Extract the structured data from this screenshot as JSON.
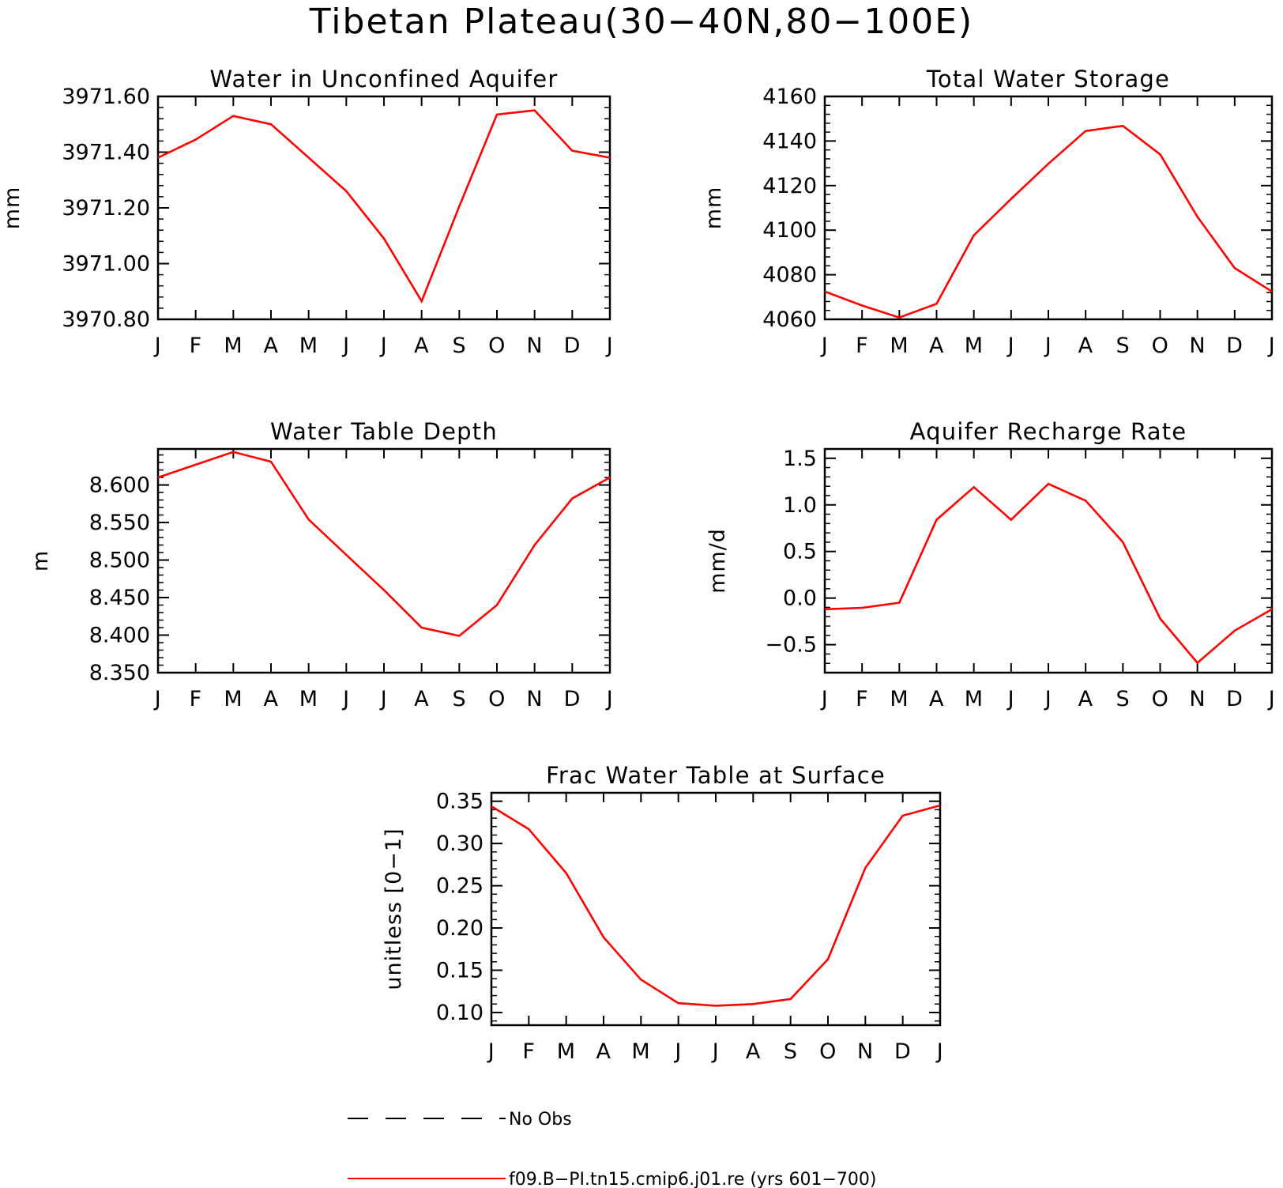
{
  "title": "Tibetan Plateau(30−40N,80−100E)",
  "legend": {
    "placement": "bottom",
    "entries": [
      {
        "label": "No Obs",
        "style": "dashed",
        "color": "#000000"
      },
      {
        "label": "f09.B−PI.tn15.cmip6.j01.re (yrs 601−700)",
        "style": "solid",
        "color": "#ff0000"
      }
    ]
  },
  "chart_data": [
    {
      "type": "line",
      "title": "Water in Unconfined Aquifer",
      "xlabel": "",
      "ylabel": "mm",
      "categories": [
        "J",
        "F",
        "M",
        "A",
        "M",
        "J",
        "J",
        "A",
        "S",
        "O",
        "N",
        "D",
        "J"
      ],
      "series": [
        {
          "name": "f09.B−PI.tn15.cmip6.j01.re (yrs 601−700)",
          "color": "#ff0000",
          "values": [
            3971.38,
            3971.445,
            3971.53,
            3971.5,
            3971.38,
            3971.26,
            3971.09,
            3970.865,
            3971.205,
            3971.535,
            3971.55,
            3971.405,
            3971.38
          ]
        }
      ],
      "ylim": [
        3970.8,
        3971.6
      ],
      "yticks": [
        3970.8,
        3971.0,
        3971.2,
        3971.4,
        3971.6
      ],
      "ytick_labels": [
        "3970.80",
        "3971.00",
        "3971.20",
        "3971.40",
        "3971.60"
      ]
    },
    {
      "type": "line",
      "title": "Total Water Storage",
      "xlabel": "",
      "ylabel": "mm",
      "categories": [
        "J",
        "F",
        "M",
        "A",
        "M",
        "J",
        "J",
        "A",
        "S",
        "O",
        "N",
        "D",
        "J"
      ],
      "series": [
        {
          "name": "f09.B−PI.tn15.cmip6.j01.re (yrs 601−700)",
          "color": "#ff0000",
          "values": [
            4072.5,
            4066.2,
            4060.8,
            4067.0,
            4097.7,
            4114.0,
            4129.8,
            4144.5,
            4146.8,
            4134.0,
            4106.0,
            4083.0,
            4072.5
          ]
        }
      ],
      "ylim": [
        4060,
        4160
      ],
      "yticks": [
        4060,
        4080,
        4100,
        4120,
        4140,
        4160
      ],
      "ytick_labels": [
        "4060",
        "4080",
        "4100",
        "4120",
        "4140",
        "4160"
      ]
    },
    {
      "type": "line",
      "title": "Water Table Depth",
      "xlabel": "",
      "ylabel": "m",
      "categories": [
        "J",
        "F",
        "M",
        "A",
        "M",
        "J",
        "J",
        "A",
        "S",
        "O",
        "N",
        "D",
        "J"
      ],
      "series": [
        {
          "name": "f09.B−PI.tn15.cmip6.j01.re (yrs 601−700)",
          "color": "#ff0000",
          "values": [
            8.61,
            8.627,
            8.644,
            8.631,
            8.554,
            8.507,
            8.46,
            8.41,
            8.399,
            8.44,
            8.52,
            8.582,
            8.61
          ]
        }
      ],
      "ylim": [
        8.35,
        8.648
      ],
      "yticks": [
        8.35,
        8.4,
        8.45,
        8.5,
        8.55,
        8.6
      ],
      "ytick_labels": [
        "8.350",
        "8.400",
        "8.450",
        "8.500",
        "8.550",
        "8.600"
      ]
    },
    {
      "type": "line",
      "title": "Aquifer Recharge Rate",
      "xlabel": "",
      "ylabel": "mm/d",
      "categories": [
        "J",
        "F",
        "M",
        "A",
        "M",
        "J",
        "J",
        "A",
        "S",
        "O",
        "N",
        "D",
        "J"
      ],
      "series": [
        {
          "name": "f09.B−PI.tn15.cmip6.j01.re (yrs 601−700)",
          "color": "#ff0000",
          "values": [
            -0.12,
            -0.105,
            -0.05,
            0.84,
            1.19,
            0.84,
            1.225,
            1.045,
            0.6,
            -0.22,
            -0.695,
            -0.35,
            -0.12
          ]
        }
      ],
      "ylim": [
        -0.8,
        1.6
      ],
      "yticks": [
        -0.5,
        0.0,
        0.5,
        1.0,
        1.5
      ],
      "ytick_labels": [
        "−0.5",
        "0.0",
        "0.5",
        "1.0",
        "1.5"
      ]
    },
    {
      "type": "line",
      "title": "Frac Water Table at Surface",
      "xlabel": "",
      "ylabel": "unitless [0−1]",
      "categories": [
        "J",
        "F",
        "M",
        "A",
        "M",
        "J",
        "J",
        "A",
        "S",
        "O",
        "N",
        "D",
        "J"
      ],
      "series": [
        {
          "name": "f09.B−PI.tn15.cmip6.j01.re (yrs 601−700)",
          "color": "#ff0000",
          "values": [
            0.344,
            0.317,
            0.265,
            0.189,
            0.139,
            0.111,
            0.108,
            0.11,
            0.116,
            0.163,
            0.271,
            0.333,
            0.345
          ]
        }
      ],
      "ylim": [
        0.085,
        0.36
      ],
      "yticks": [
        0.1,
        0.15,
        0.2,
        0.25,
        0.3,
        0.35
      ],
      "ytick_labels": [
        "0.10",
        "0.15",
        "0.20",
        "0.25",
        "0.30",
        "0.35"
      ]
    }
  ]
}
